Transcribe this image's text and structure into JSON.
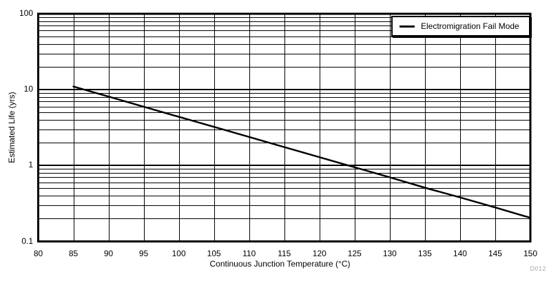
{
  "chart_data": {
    "type": "line",
    "title": "",
    "xlabel": "Continuous Junction Temperature (°C)",
    "ylabel": "Estimated Life (yrs)",
    "xlim": [
      80,
      150
    ],
    "x_ticks": [
      80,
      85,
      90,
      95,
      100,
      105,
      110,
      115,
      120,
      125,
      130,
      135,
      140,
      145,
      150
    ],
    "y_scale": "log",
    "ylim": [
      0.1,
      100
    ],
    "y_ticks": [
      0.1,
      1,
      10,
      100
    ],
    "y_tick_labels": [
      "0.1",
      "1",
      "10",
      "100"
    ],
    "grid": "vertical majors every 5°C; horizontal log decades plus minor lines 2-9 per decade; all solid black on white",
    "legend_position": "top-right-inside",
    "series": [
      {
        "name": "Electromigration Fail Mode",
        "color": "#000000",
        "x": [
          85,
          90,
          95,
          100,
          105,
          110,
          115,
          120,
          125,
          130,
          135,
          140,
          145,
          150
        ],
        "y": [
          11,
          8.1,
          5.96,
          4.39,
          3.23,
          2.38,
          1.75,
          1.29,
          0.95,
          0.7,
          0.51,
          0.38,
          0.28,
          0.205
        ]
      }
    ]
  },
  "figure": {
    "note": "D012",
    "note_color": "#a8a8a8",
    "background": "#ffffff",
    "axis_color": "#000000"
  }
}
